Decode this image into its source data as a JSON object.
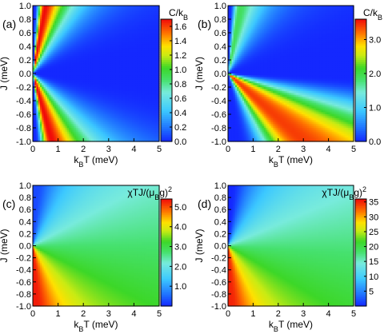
{
  "chart_data": [
    {
      "type": "heatmap",
      "panel_label": "(a)",
      "xlabel": "k_BT (meV)",
      "ylabel": "J (meV)",
      "xlim": [
        0,
        5
      ],
      "ylim": [
        -1,
        1
      ],
      "x_ticks": [
        "0",
        "1",
        "2",
        "3",
        "4",
        "5"
      ],
      "y_ticks": [
        "1.0",
        "0.8",
        "0.6",
        "0.4",
        "0.2",
        "0.0",
        "-0.2",
        "-0.4",
        "-0.6",
        "-0.8",
        "-1.0"
      ],
      "colorbar_label": "C/k_B",
      "colorbar_range": [
        0,
        1.7
      ],
      "colorbar_ticks": [
        "1.6",
        "1.4",
        "1.2",
        "1.0",
        "0.8",
        "0.6",
        "0.4",
        "0.2",
        "0.0"
      ],
      "ridges": [
        {
          "J_sign": "positive",
          "slope_T_per_J": 0.5,
          "peak": 1.7
        },
        {
          "J_sign": "negative",
          "slope_T_per_J": 0.75,
          "peak": 1.7
        }
      ]
    },
    {
      "type": "heatmap",
      "panel_label": "(b)",
      "xlabel": "k_BT (meV)",
      "ylabel": "J (meV)",
      "xlim": [
        0,
        5
      ],
      "ylim": [
        -1,
        1
      ],
      "x_ticks": [
        "0",
        "1",
        "2",
        "3",
        "4",
        "5"
      ],
      "y_ticks": [
        "1.0",
        "0.8",
        "0.6",
        "0.4",
        "0.2",
        "0.0",
        "-0.2",
        "-0.4",
        "-0.6",
        "-0.8",
        "-1.0"
      ],
      "colorbar_label": "C/k_B",
      "colorbar_range": [
        0,
        3.6
      ],
      "colorbar_ticks": [
        "3.0",
        "2.0",
        "1.0",
        "0.0"
      ],
      "ridges": [
        {
          "J_sign": "positive",
          "slope_T_per_J": 0.5,
          "peak": 1.9
        },
        {
          "J_sign": "negative",
          "slope_T_per_J": 3.0,
          "peak": 3.4
        }
      ]
    },
    {
      "type": "heatmap",
      "panel_label": "(c)",
      "xlabel": "k_BT (meV)",
      "ylabel": "J (meV)",
      "xlim": [
        0,
        5
      ],
      "ylim": [
        -1,
        1
      ],
      "x_ticks": [
        "0",
        "1",
        "2",
        "3",
        "4",
        "5"
      ],
      "y_ticks": [
        "1.0",
        "0.8",
        "0.6",
        "0.4",
        "0.2",
        "0.0",
        "-0.2",
        "-0.4",
        "-0.6",
        "-0.8",
        "-1.0"
      ],
      "colorbar_label": "χTJ/(μ_Bg)^2",
      "colorbar_range": [
        0,
        5.4
      ],
      "colorbar_ticks": [
        "5.0",
        "4.0",
        "3.0",
        "2.0",
        "1.0"
      ],
      "limits": {
        "J_positive_low_T": 0.25,
        "high_T": 2.7,
        "J_negative_low_T": 5.3
      }
    },
    {
      "type": "heatmap",
      "panel_label": "(d)",
      "xlabel": "k_BT (meV)",
      "ylabel": "J (meV)",
      "xlim": [
        0,
        5
      ],
      "ylim": [
        -1,
        1
      ],
      "x_ticks": [
        "0",
        "1",
        "2",
        "3",
        "4",
        "5"
      ],
      "y_ticks": [
        "1.0",
        "0.8",
        "0.6",
        "0.4",
        "0.2",
        "0.0",
        "-0.2",
        "-0.4",
        "-0.6",
        "-0.8",
        "-1.0"
      ],
      "colorbar_label": "χTJ/(μ_Bg)^2",
      "colorbar_range": [
        0,
        36
      ],
      "colorbar_ticks": [
        "35",
        "30",
        "25",
        "20",
        "15",
        "10",
        "5"
      ],
      "limits": {
        "J_positive_low_T": 0.0,
        "high_T": 17.5,
        "J_negative_low_T": 35.0
      }
    }
  ]
}
